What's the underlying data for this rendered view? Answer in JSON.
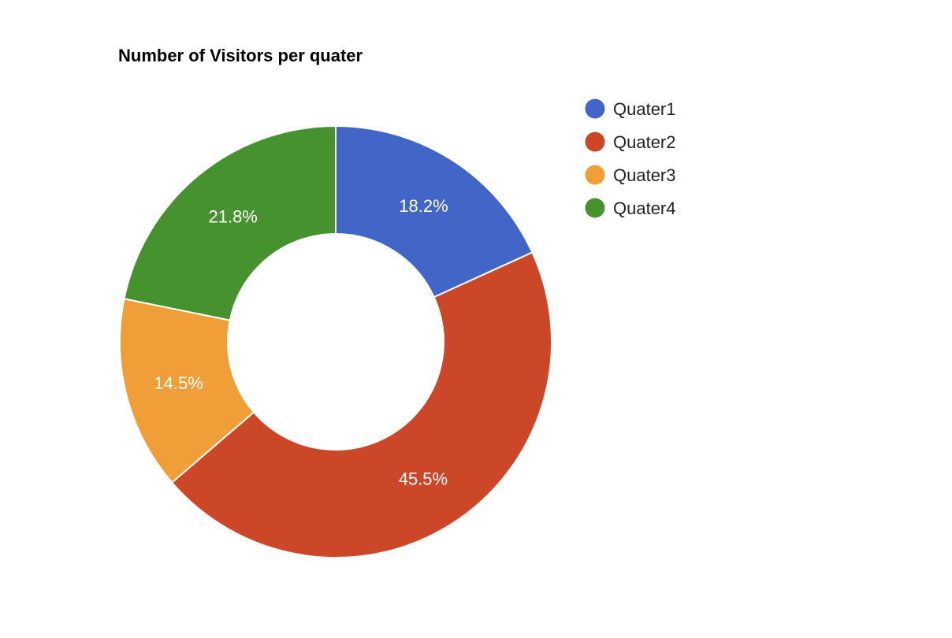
{
  "chart_data": {
    "type": "pie",
    "donut": true,
    "title": "Number of Visitors per quater",
    "categories": [
      "Quater1",
      "Quater2",
      "Quater3",
      "Quater4"
    ],
    "values": [
      18.2,
      45.5,
      14.5,
      21.8
    ],
    "value_labels": [
      "18.2%",
      "45.5%",
      "14.5%",
      "21.8%"
    ],
    "colors": [
      "#4166c7",
      "#cc4628",
      "#f09e37",
      "#46922f"
    ],
    "legend_placement": "right"
  }
}
